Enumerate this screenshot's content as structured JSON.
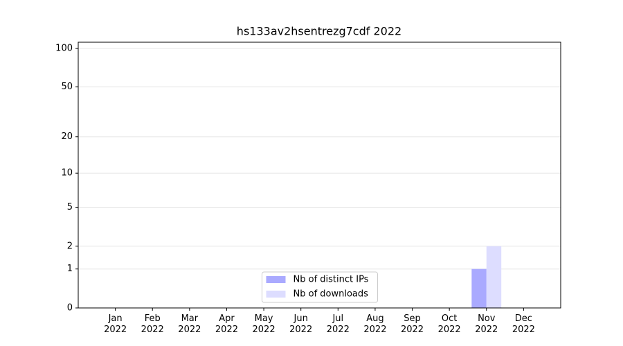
{
  "chart_data": {
    "type": "bar",
    "title": "hs133av2hsentrezg7cdf 2022",
    "categories": [
      "Jan 2022",
      "Feb 2022",
      "Mar 2022",
      "Apr 2022",
      "May 2022",
      "Jun 2022",
      "Jul 2022",
      "Aug 2022",
      "Sep 2022",
      "Oct 2022",
      "Nov 2022",
      "Dec 2022"
    ],
    "series": [
      {
        "name": "Nb of distinct IPs",
        "color": "#aaaaff",
        "values": [
          0,
          0,
          0,
          0,
          0,
          0,
          0,
          0,
          0,
          0,
          1,
          0
        ]
      },
      {
        "name": "Nb of downloads",
        "color": "#ddddff",
        "values": [
          0,
          0,
          0,
          0,
          0,
          0,
          0,
          0,
          0,
          0,
          2,
          0
        ]
      }
    ],
    "ylim": [
      0,
      112
    ],
    "yticks": [
      0,
      1,
      2,
      5,
      10,
      20,
      50,
      100
    ],
    "yscale": "log1p",
    "grid": true,
    "legend": "lower center"
  }
}
